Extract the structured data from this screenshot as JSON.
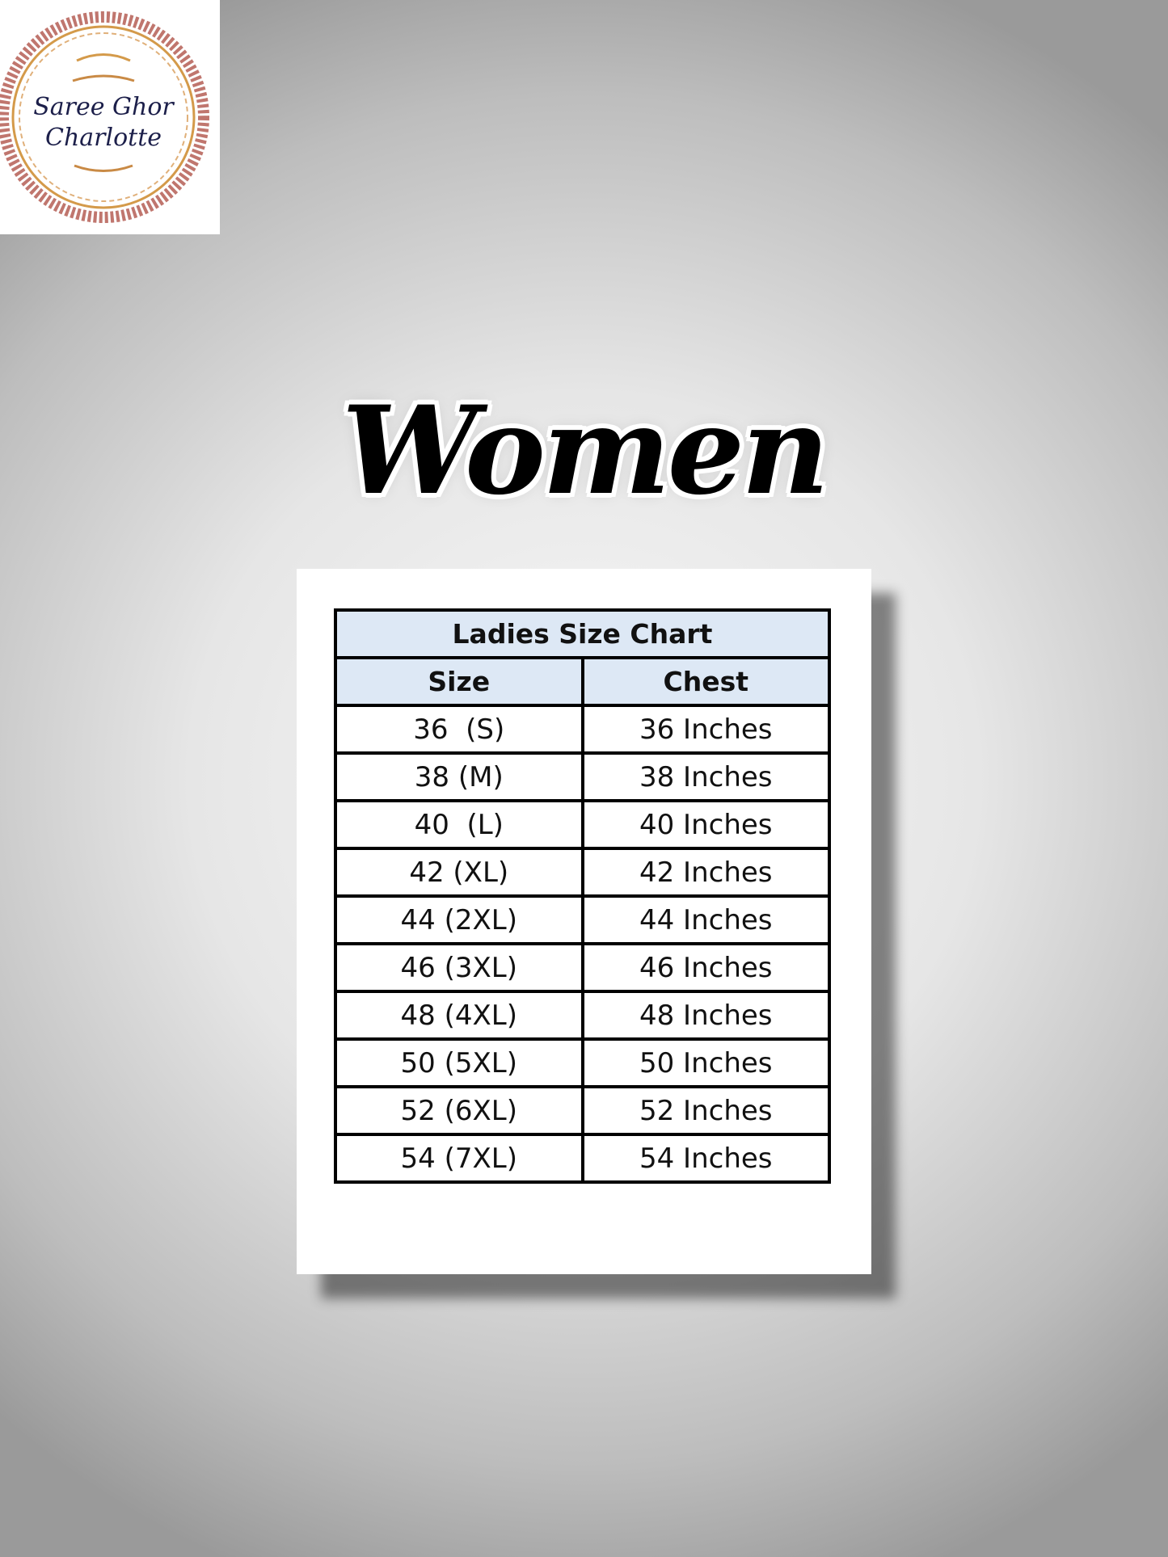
{
  "logo": {
    "text_line1": "Saree Ghor",
    "text_line2": "Charlotte"
  },
  "heading": "Women",
  "table": {
    "title": "Ladies Size Chart",
    "columns": [
      "Size",
      "Chest"
    ],
    "rows": [
      [
        "36  (S)",
        "36 Inches"
      ],
      [
        "38 (M)",
        "38 Inches"
      ],
      [
        "40  (L)",
        "40 Inches"
      ],
      [
        "42 (XL)",
        "42 Inches"
      ],
      [
        "44 (2XL)",
        "44 Inches"
      ],
      [
        "46 (3XL)",
        "46 Inches"
      ],
      [
        "48 (4XL)",
        "48 Inches"
      ],
      [
        "50 (5XL)",
        "50 Inches"
      ],
      [
        "52 (6XL)",
        "52 Inches"
      ],
      [
        "54 (7XL)",
        "54 Inches"
      ]
    ]
  },
  "colors": {
    "header_bg": "#dde8f5",
    "logo_text": "#1c1f4a",
    "logo_ring": "#c0766e",
    "logo_ornament": "#d49a4a"
  }
}
